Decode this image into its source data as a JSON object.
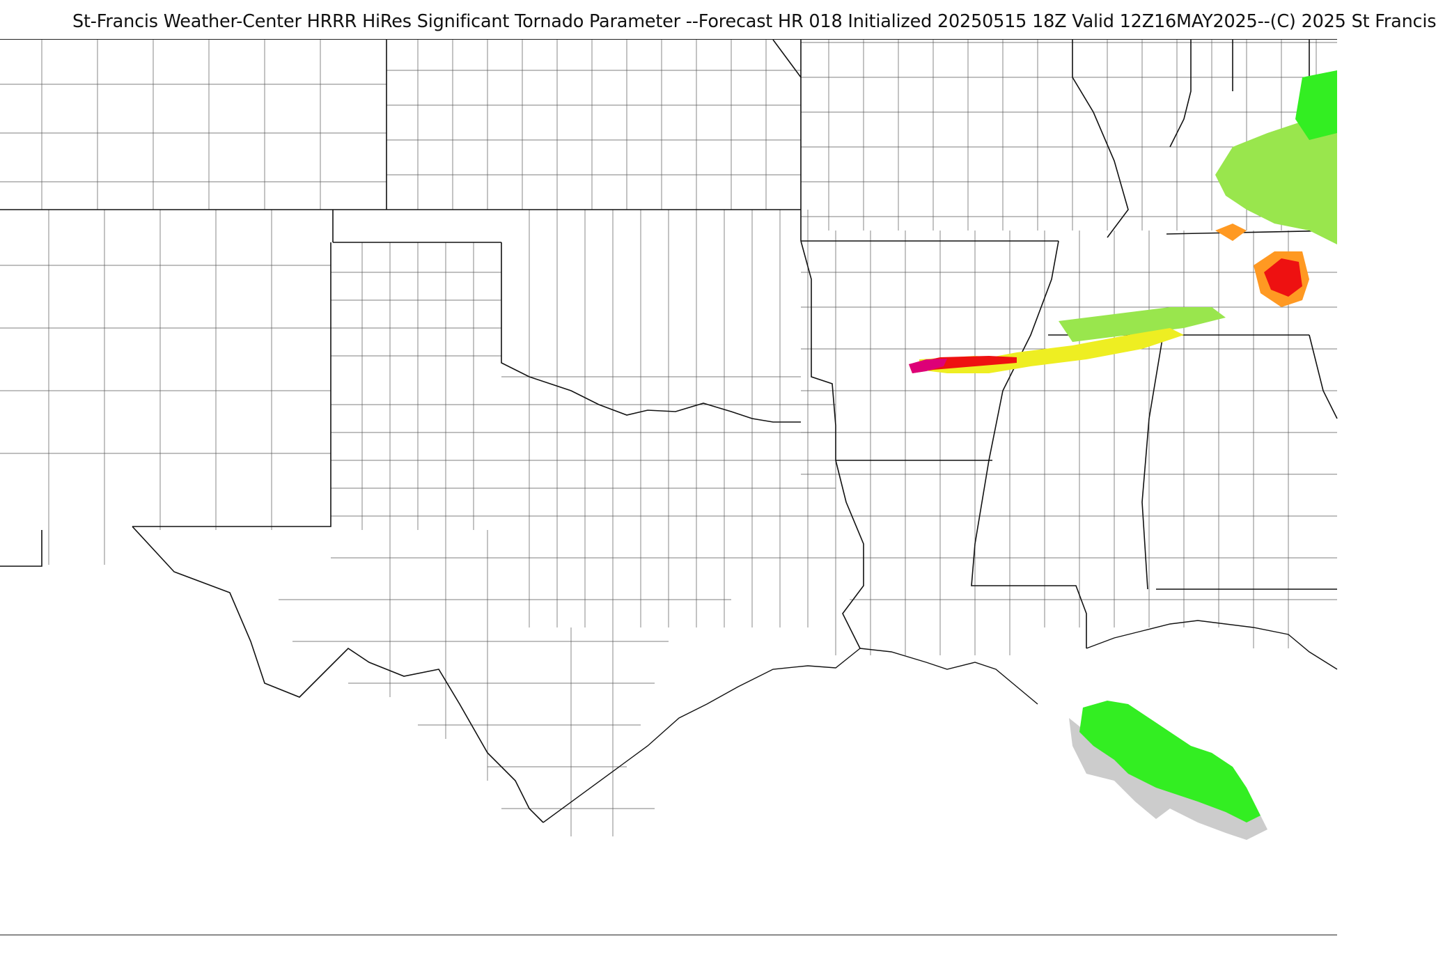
{
  "title": "St-Francis Weather-Center HRRR HiRes Significant Tornado Parameter --Forecast HR 018 Initialized 20250515 18Z Valid 12Z16MAY2025--(C) 2025 St Francis",
  "colors": {
    "border": "#111111",
    "county": "#555555",
    "stp_light_green": "#99e64d",
    "stp_green": "#33ee22",
    "stp_yellow": "#eeee22",
    "stp_orange": "#ff9922",
    "stp_red": "#ee1111",
    "stp_magenta": "#dd0077",
    "gray_mask": "#cccccc"
  }
}
